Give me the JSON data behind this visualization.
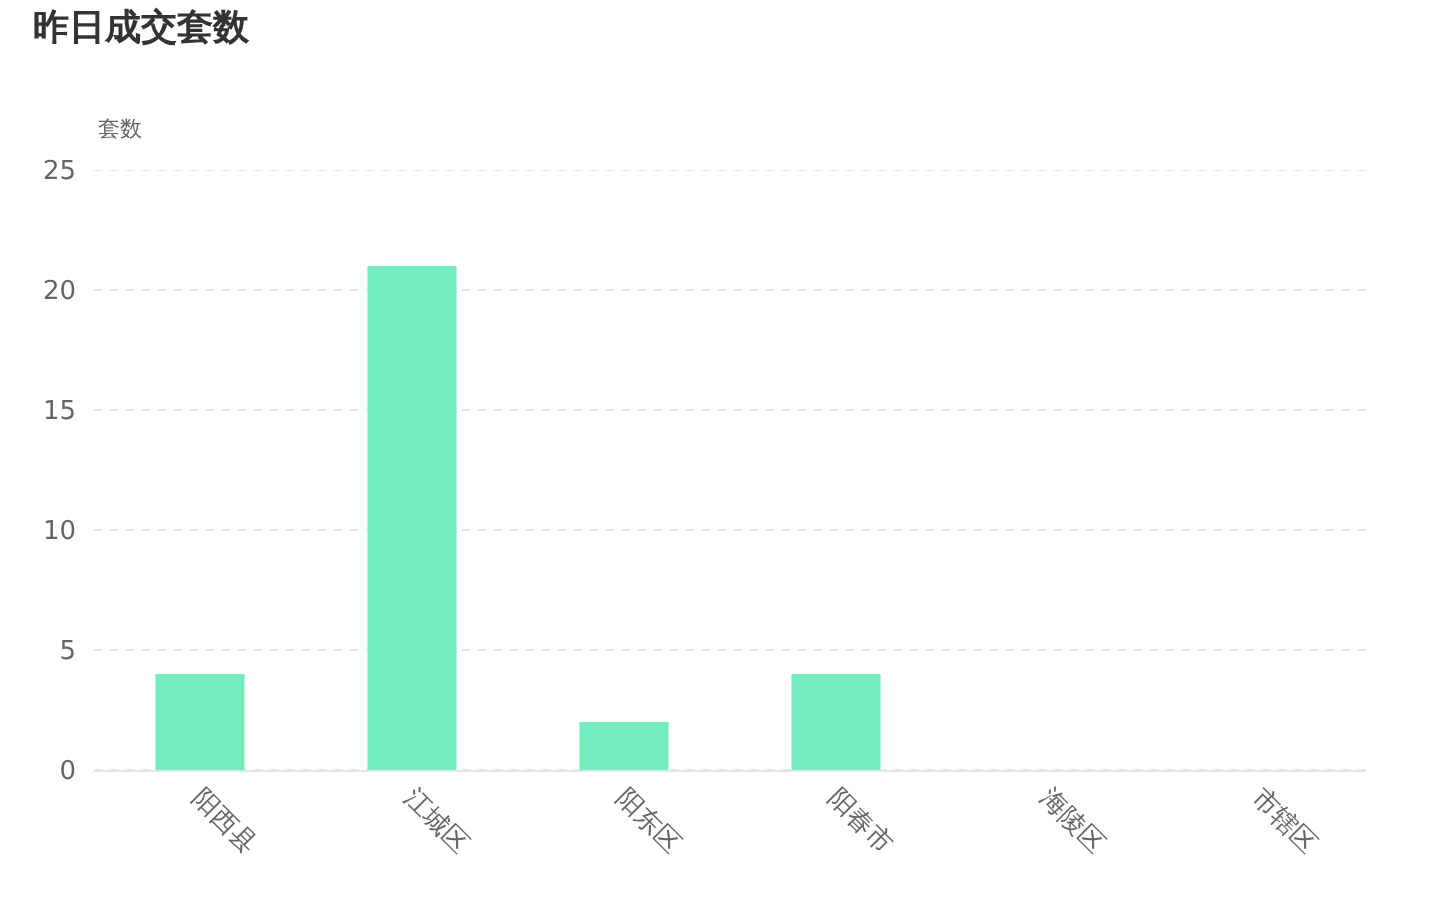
{
  "chart_data": {
    "type": "bar",
    "title": "昨日成交套数",
    "ylabel": "套数",
    "categories": [
      "阳西县",
      "江城区",
      "阳东区",
      "阳春市",
      "海陵区",
      "市辖区"
    ],
    "values": [
      4,
      21,
      2,
      4,
      0,
      0
    ],
    "color": "#73ecbe",
    "ylim": [
      0,
      25
    ],
    "yticks": [
      0,
      5,
      10,
      15,
      20,
      25
    ],
    "grid": "y"
  }
}
